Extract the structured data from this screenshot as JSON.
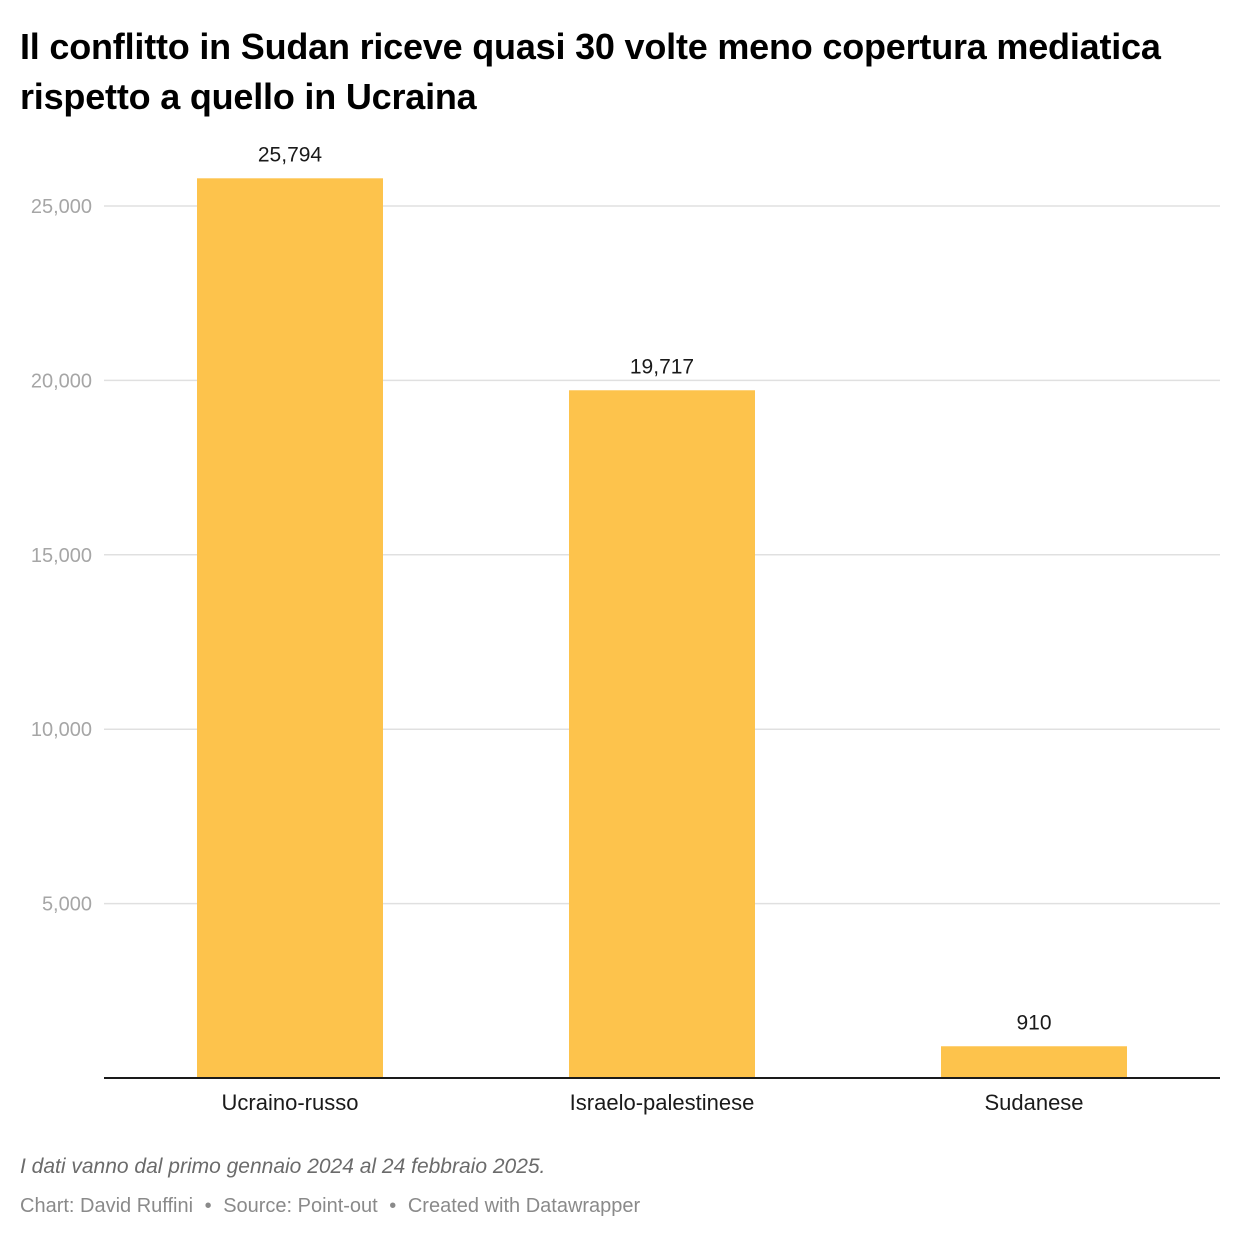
{
  "title": "Il conflitto in Sudan riceve quasi 30 volte meno copertura mediatica rispetto a quello in Ucraina",
  "note": "I dati vanno dal primo gennaio 2024 al 24 febbraio 2025.",
  "footer": {
    "credit": "Chart: David Ruffini",
    "separator": "•",
    "source": "Source: Point-out",
    "tool": "Created with Datawrapper"
  },
  "colors": {
    "bar": "#fdc34c",
    "grid": "#e0e0e0",
    "baseline": "#1a1a1a",
    "tick_text": "#a6a6a6"
  },
  "chart_data": {
    "type": "bar",
    "title": "Il conflitto in Sudan riceve quasi 30 volte meno copertura mediatica rispetto a quello in Ucraina",
    "xlabel": "",
    "ylabel": "",
    "categories": [
      "Ucraino-russo",
      "Israelo-palestinese",
      "Sudanese"
    ],
    "values": [
      25794,
      19717,
      910
    ],
    "value_labels": [
      "25,794",
      "19,717",
      "910"
    ],
    "ylim": [
      0,
      25000
    ],
    "yticks": [
      5000,
      10000,
      15000,
      20000,
      25000
    ],
    "ytick_labels": [
      "5,000",
      "10,000",
      "15,000",
      "20,000",
      "25,000"
    ],
    "grid": true,
    "legend": "none"
  }
}
